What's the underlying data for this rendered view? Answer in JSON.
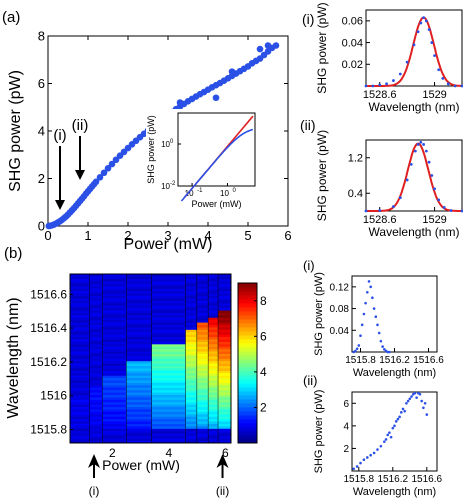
{
  "panel_labels": {
    "a": "(a)",
    "b": "(b)"
  },
  "chart_data": [
    {
      "id": "main",
      "type": "scatter",
      "xlabel": "Power (mW)",
      "ylabel": "SHG power (pW)",
      "xlim": [
        0,
        6
      ],
      "ylim": [
        0,
        8
      ],
      "xticks": [
        0,
        1,
        2,
        3,
        4,
        5,
        6
      ],
      "yticks": [
        0,
        2,
        4,
        6,
        8
      ],
      "color": "#2b50e6",
      "markers": [
        {
          "label": "(i)",
          "x": 0.3
        },
        {
          "label": "(ii)",
          "x": 0.8
        }
      ],
      "series": [
        {
          "points": [
            [
              0.02,
              0.0
            ],
            [
              0.05,
              0.01
            ],
            [
              0.1,
              0.03
            ],
            [
              0.15,
              0.06
            ],
            [
              0.2,
              0.1
            ],
            [
              0.25,
              0.15
            ],
            [
              0.3,
              0.2
            ],
            [
              0.35,
              0.26
            ],
            [
              0.4,
              0.33
            ],
            [
              0.45,
              0.4
            ],
            [
              0.5,
              0.48
            ],
            [
              0.55,
              0.57
            ],
            [
              0.6,
              0.66
            ],
            [
              0.65,
              0.75
            ],
            [
              0.7,
              0.85
            ],
            [
              0.75,
              0.95
            ],
            [
              0.8,
              1.05
            ],
            [
              0.85,
              1.15
            ],
            [
              0.9,
              1.25
            ],
            [
              0.95,
              1.36
            ],
            [
              1.0,
              1.46
            ],
            [
              1.05,
              1.56
            ],
            [
              1.1,
              1.66
            ],
            [
              1.15,
              1.76
            ],
            [
              1.2,
              1.86
            ],
            [
              1.3,
              2.05
            ],
            [
              1.4,
              2.24
            ],
            [
              1.5,
              2.43
            ],
            [
              1.6,
              2.61
            ],
            [
              1.7,
              2.79
            ],
            [
              1.8,
              2.96
            ],
            [
              1.9,
              3.12
            ],
            [
              2.0,
              3.28
            ],
            [
              2.1,
              3.44
            ],
            [
              2.2,
              3.59
            ],
            [
              2.3,
              3.74
            ],
            [
              2.4,
              3.88
            ],
            [
              2.5,
              4.02
            ],
            [
              2.6,
              4.16
            ],
            [
              2.7,
              4.3
            ],
            [
              2.8,
              4.43
            ],
            [
              2.9,
              4.56
            ],
            [
              3.0,
              4.68
            ],
            [
              3.1,
              4.8
            ],
            [
              3.2,
              4.92
            ],
            [
              3.3,
              5.03
            ],
            [
              3.4,
              5.14
            ],
            [
              3.5,
              5.25
            ],
            [
              3.6,
              5.35
            ],
            [
              3.7,
              5.45
            ],
            [
              3.8,
              5.55
            ],
            [
              3.9,
              5.64
            ],
            [
              4.0,
              5.74
            ],
            [
              4.1,
              5.84
            ],
            [
              4.2,
              5.93
            ],
            [
              4.3,
              6.02
            ],
            [
              4.4,
              6.12
            ],
            [
              4.5,
              6.22
            ],
            [
              4.6,
              6.32
            ],
            [
              4.7,
              6.42
            ],
            [
              4.8,
              6.52
            ],
            [
              4.9,
              6.62
            ],
            [
              5.0,
              6.72
            ],
            [
              5.1,
              6.85
            ],
            [
              5.2,
              6.95
            ],
            [
              5.3,
              7.05
            ],
            [
              5.4,
              7.2
            ],
            [
              5.5,
              7.35
            ],
            [
              5.6,
              7.5
            ],
            [
              5.7,
              7.6
            ],
            [
              4.2,
              5.4
            ],
            [
              5.3,
              7.45
            ],
            [
              5.5,
              7.6
            ],
            [
              3.3,
              5.2
            ],
            [
              4.6,
              6.5
            ]
          ]
        }
      ]
    },
    {
      "id": "inset",
      "type": "line",
      "scale": "log",
      "xlabel": "Power (mW)",
      "ylabel": "SHG power (pW)",
      "xlim": [
        0.04,
        6
      ],
      "ylim": [
        0.01,
        30
      ],
      "xticks": [
        {
          "v": 0.1,
          "t": "10"
        },
        {
          "v": 1,
          "t": "10"
        }
      ],
      "xtick_exp": [
        "-1",
        "0"
      ],
      "yticks": [
        {
          "v": 0.01,
          "t": "10"
        },
        {
          "v": 1,
          "t": "10"
        }
      ],
      "ytick_exp": [
        "-2",
        "0"
      ],
      "fit_color": "#e02020",
      "data_color": "#2b50e6"
    },
    {
      "id": "a_i",
      "type": "scatter",
      "xlabel": "Wavelength (nm)",
      "ylabel": "SHG power (pW)",
      "xlim": [
        1528.5,
        1529.2
      ],
      "ylim": [
        0,
        0.07
      ],
      "xticks": [
        {
          "v": 1528.6,
          "t": "1528.6"
        },
        {
          "v": 1529,
          "t": "1529"
        }
      ],
      "yticks": [
        {
          "v": 0.02,
          "t": "0.02"
        },
        {
          "v": 0.04,
          "t": "0.04"
        },
        {
          "v": 0.06,
          "t": "0.06"
        }
      ],
      "peak": {
        "center": 1528.92,
        "width": 0.075,
        "amp": 0.063
      },
      "points": [
        [
          1528.5,
          0.0
        ],
        [
          1528.55,
          0.0
        ],
        [
          1528.6,
          0.001
        ],
        [
          1528.65,
          0.002
        ],
        [
          1528.7,
          0.005
        ],
        [
          1528.75,
          0.011
        ],
        [
          1528.8,
          0.022
        ],
        [
          1528.85,
          0.038
        ],
        [
          1528.88,
          0.05
        ],
        [
          1528.9,
          0.058
        ],
        [
          1528.92,
          0.063
        ],
        [
          1528.94,
          0.06
        ],
        [
          1528.96,
          0.052
        ],
        [
          1528.98,
          0.04
        ],
        [
          1529.0,
          0.028
        ],
        [
          1529.03,
          0.015
        ],
        [
          1529.06,
          0.007
        ],
        [
          1529.1,
          0.002
        ],
        [
          1529.15,
          0.0
        ],
        [
          1529.2,
          0.0
        ]
      ]
    },
    {
      "id": "a_ii",
      "type": "scatter",
      "xlabel": "Wavelength (nm)",
      "ylabel": "SHG power (pW)",
      "xlim": [
        1528.5,
        1529.2
      ],
      "ylim": [
        0,
        1.6
      ],
      "xticks": [
        {
          "v": 1528.6,
          "t": "1528.6"
        },
        {
          "v": 1529,
          "t": "1529"
        }
      ],
      "yticks": [
        {
          "v": 0.4,
          "t": "0.4"
        },
        {
          "v": 1.2,
          "t": "1.2"
        }
      ],
      "peak": {
        "center": 1528.88,
        "width": 0.075,
        "amp": 1.52
      },
      "points": [
        [
          1528.5,
          0.0
        ],
        [
          1528.6,
          0.01
        ],
        [
          1528.7,
          0.1
        ],
        [
          1528.75,
          0.3
        ],
        [
          1528.8,
          0.7
        ],
        [
          1528.83,
          1.05
        ],
        [
          1528.86,
          1.35
        ],
        [
          1528.88,
          1.5
        ],
        [
          1528.9,
          1.55
        ],
        [
          1528.92,
          1.5
        ],
        [
          1528.94,
          1.35
        ],
        [
          1528.96,
          1.1
        ],
        [
          1528.98,
          0.8
        ],
        [
          1529.0,
          0.5
        ],
        [
          1529.03,
          0.25
        ],
        [
          1529.07,
          0.08
        ],
        [
          1529.12,
          0.01
        ],
        [
          1529.2,
          0.0
        ]
      ]
    },
    {
      "id": "heatmap",
      "type": "heatmap",
      "xlabel": "Power (mW)",
      "ylabel": "Wavelength (nm)",
      "xlim": [
        0.5,
        6.2
      ],
      "ylim": [
        1515.72,
        1516.72
      ],
      "xticks": [
        2,
        4,
        6
      ],
      "yticks": [
        1515.8,
        1516,
        1516.2,
        1516.4,
        1516.6
      ],
      "colorbar_ticks": [
        2,
        4,
        6,
        8
      ],
      "colorbar_range": [
        0,
        9
      ],
      "column_edges": [
        0.5,
        1.2,
        1.65,
        2.5,
        3.4,
        4.6,
        5.0,
        5.4,
        5.75,
        6.2
      ],
      "markers": [
        {
          "label": "(i)",
          "x": 1.35
        },
        {
          "label": "(ii)",
          "x": 5.9
        }
      ]
    },
    {
      "id": "b_i",
      "type": "scatter",
      "xlabel": "Wavelength (nm)",
      "ylabel": "SHG power (pW)",
      "xlim": [
        1515.7,
        1516.7
      ],
      "ylim": [
        0,
        0.14
      ],
      "xticks": [
        {
          "v": 1515.8,
          "t": "1515.8"
        },
        {
          "v": 1516.2,
          "t": "1516.2"
        },
        {
          "v": 1516.6,
          "t": "1516.6"
        }
      ],
      "yticks": [
        {
          "v": 0.04,
          "t": "0.04"
        },
        {
          "v": 0.08,
          "t": "0.08"
        },
        {
          "v": 0.12,
          "t": "0.12"
        }
      ],
      "points": [
        [
          1515.72,
          0.0
        ],
        [
          1515.74,
          0.002
        ],
        [
          1515.76,
          0.006
        ],
        [
          1515.78,
          0.012
        ],
        [
          1515.8,
          0.03
        ],
        [
          1515.82,
          0.05
        ],
        [
          1515.84,
          0.07
        ],
        [
          1515.86,
          0.09
        ],
        [
          1515.88,
          0.11
        ],
        [
          1515.9,
          0.13
        ],
        [
          1515.92,
          0.12
        ],
        [
          1515.94,
          0.1
        ],
        [
          1515.96,
          0.08
        ],
        [
          1515.98,
          0.065
        ],
        [
          1516.0,
          0.05
        ],
        [
          1516.02,
          0.035
        ],
        [
          1516.04,
          0.02
        ],
        [
          1516.06,
          0.01
        ],
        [
          1516.08,
          0.005
        ],
        [
          1516.1,
          0.002
        ],
        [
          1516.12,
          0.0
        ],
        [
          1516.14,
          0.0
        ]
      ]
    },
    {
      "id": "b_ii",
      "type": "scatter",
      "xlabel": "Wavelength (nm)",
      "ylabel": "SHG power (pW)",
      "xlim": [
        1515.72,
        1516.72
      ],
      "ylim": [
        0,
        7
      ],
      "xticks": [
        {
          "v": 1515.8,
          "t": "1515.8"
        },
        {
          "v": 1516.2,
          "t": "1516.2"
        },
        {
          "v": 1516.6,
          "t": "1516.6"
        }
      ],
      "yticks": [
        {
          "v": 2,
          "t": "2"
        },
        {
          "v": 4,
          "t": "4"
        },
        {
          "v": 6,
          "t": "6"
        }
      ],
      "points": [
        [
          1515.74,
          0.2
        ],
        [
          1515.78,
          0.4
        ],
        [
          1515.82,
          0.7
        ],
        [
          1515.86,
          1.0
        ],
        [
          1515.9,
          1.2
        ],
        [
          1515.94,
          1.4
        ],
        [
          1515.98,
          1.6
        ],
        [
          1516.02,
          1.9
        ],
        [
          1516.06,
          2.2
        ],
        [
          1516.1,
          2.6
        ],
        [
          1516.12,
          2.8
        ],
        [
          1516.14,
          3.2
        ],
        [
          1516.16,
          3.4
        ],
        [
          1516.18,
          3.0
        ],
        [
          1516.2,
          3.8
        ],
        [
          1516.22,
          4.0
        ],
        [
          1516.24,
          4.4
        ],
        [
          1516.26,
          4.6
        ],
        [
          1516.28,
          4.8
        ],
        [
          1516.3,
          5.2
        ],
        [
          1516.32,
          5.5
        ],
        [
          1516.34,
          5.3
        ],
        [
          1516.36,
          6.0
        ],
        [
          1516.38,
          6.2
        ],
        [
          1516.4,
          6.4
        ],
        [
          1516.42,
          6.6
        ],
        [
          1516.44,
          6.8
        ],
        [
          1516.46,
          6.9
        ],
        [
          1516.48,
          6.5
        ],
        [
          1516.5,
          6.9
        ],
        [
          1516.52,
          6.8
        ],
        [
          1516.54,
          6.2
        ],
        [
          1516.56,
          5.6
        ],
        [
          1516.58,
          6.0
        ],
        [
          1516.6,
          5.0
        ]
      ]
    }
  ]
}
